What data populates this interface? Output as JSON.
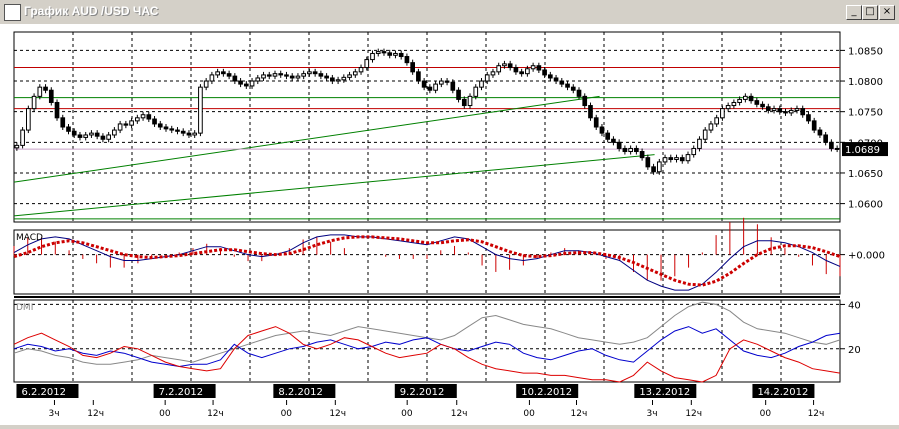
{
  "window": {
    "title": "График AUD /USD  ЧАС",
    "minimize": "_",
    "maximize": "□",
    "close": "×"
  },
  "colors": {
    "background": "#ffffff",
    "grid": "#000000",
    "resistance": "#c00000",
    "support": "#008000",
    "macd_signal": "#cc0000",
    "macd_line": "#000080",
    "dmi_adx": "#888888",
    "dmi_plus": "#0000cc",
    "dmi_minus": "#dd0000",
    "date_label_bg": "#000000",
    "price_label_bg": "#000000"
  },
  "chart_data": [
    {
      "type": "candlestick",
      "panel": "price",
      "title": "",
      "yticks": [
        "1.0850",
        "1.0800",
        "1.0750",
        "1.0700",
        "1.0650",
        "1.0600"
      ],
      "ylim": [
        1.057,
        1.088
      ],
      "current_price": "1.0689",
      "horizontal_lines": [
        {
          "kind": "resistance",
          "value": 1.0822
        },
        {
          "kind": "resistance",
          "value": 1.0755
        },
        {
          "kind": "support",
          "value": 1.0773
        },
        {
          "kind": "support",
          "value": 1.0575
        }
      ],
      "trend_lines": [
        {
          "kind": "support",
          "from": [
            0,
            1.0635
          ],
          "to": [
            200,
            1.0775
          ]
        },
        {
          "kind": "support",
          "from": [
            0,
            1.058
          ],
          "to": [
            200,
            1.068
          ]
        }
      ],
      "close": [
        1.0695,
        1.072,
        1.0755,
        1.0775,
        1.079,
        1.0785,
        1.0765,
        1.074,
        1.0725,
        1.0718,
        1.0712,
        1.0708,
        1.0712,
        1.0715,
        1.071,
        1.0705,
        1.0712,
        1.072,
        1.073,
        1.0728,
        1.0735,
        1.074,
        1.0745,
        1.0738,
        1.073,
        1.0725,
        1.0722,
        1.072,
        1.0718,
        1.0715,
        1.0712,
        1.0715,
        1.079,
        1.08,
        1.081,
        1.0815,
        1.0812,
        1.0808,
        1.08,
        1.0795,
        1.0792,
        1.08,
        1.0805,
        1.081,
        1.0808,
        1.0812,
        1.081,
        1.0808,
        1.0805,
        1.0808,
        1.0812,
        1.0815,
        1.0812,
        1.0808,
        1.0805,
        1.08,
        1.0802,
        1.0806,
        1.081,
        1.0815,
        1.0822,
        1.0835,
        1.0845,
        1.0848,
        1.0846,
        1.0842,
        1.0845,
        1.084,
        1.083,
        1.0815,
        1.08,
        1.079,
        1.0785,
        1.0795,
        1.08,
        1.0798,
        1.0785,
        1.077,
        1.076,
        1.0775,
        1.079,
        1.08,
        1.081,
        1.0815,
        1.0825,
        1.0828,
        1.0822,
        1.0815,
        1.0812,
        1.082,
        1.0825,
        1.0818,
        1.081,
        1.0805,
        1.08,
        1.0795,
        1.079,
        1.0785,
        1.0775,
        1.076,
        1.074,
        1.0725,
        1.0715,
        1.0705,
        1.07,
        1.069,
        1.0685,
        1.069,
        1.0685,
        1.0675,
        1.066,
        1.0652,
        1.0668,
        1.0675,
        1.0672,
        1.0675,
        1.067,
        1.068,
        1.069,
        1.0705,
        1.072,
        1.073,
        1.074,
        1.0755,
        1.076,
        1.0765,
        1.077,
        1.0775,
        1.0768,
        1.0762,
        1.0758,
        1.0752,
        1.0755,
        1.075,
        1.0748,
        1.0752,
        1.0755,
        1.0745,
        1.0735,
        1.072,
        1.0712,
        1.07,
        1.069,
        1.0689
      ],
      "candle_range": 0.0014
    },
    {
      "type": "line",
      "panel": "macd",
      "title": "MACD",
      "yticks": [
        "+0.000"
      ],
      "ylim": [
        -0.004,
        0.0025
      ],
      "series": [
        {
          "role": "macd_line",
          "values": [
            0.0002,
            0.001,
            0.0016,
            0.0018,
            0.0016,
            0.001,
            0.0004,
            -0.0002,
            -0.0006,
            -0.0006,
            -0.0004,
            -0.0002,
            0.0,
            0.0004,
            0.0008,
            0.0008,
            0.0004,
            0.0,
            -0.0002,
            0.0,
            0.0004,
            0.0012,
            0.0018,
            0.002,
            0.002,
            0.0018,
            0.0018,
            0.0016,
            0.0014,
            0.0012,
            0.001,
            0.0014,
            0.0018,
            0.0016,
            0.0008,
            0.0,
            -0.0004,
            -0.0006,
            -0.0004,
            0.0,
            0.0004,
            0.0004,
            0.0002,
            -0.0002,
            -0.0006,
            -0.0016,
            -0.0026,
            -0.0032,
            -0.0036,
            -0.0036,
            -0.003,
            -0.0018,
            -0.0004,
            0.0008,
            0.0014,
            0.0014,
            0.0012,
            0.0008,
            0.0002,
            -0.0006,
            -0.0012
          ]
        },
        {
          "role": "signal_line",
          "values": [
            -0.0002,
            0.0002,
            0.0008,
            0.0012,
            0.0014,
            0.0012,
            0.0008,
            0.0004,
            0.0,
            -0.0002,
            -0.0003,
            -0.0002,
            -0.0001,
            0.0001,
            0.0003,
            0.0005,
            0.0005,
            0.0003,
            0.0001,
            0.0,
            0.0001,
            0.0005,
            0.001,
            0.0014,
            0.0017,
            0.0018,
            0.0018,
            0.0017,
            0.0016,
            0.0014,
            0.0012,
            0.0012,
            0.0014,
            0.0015,
            0.0013,
            0.0008,
            0.0003,
            -0.0001,
            -0.0002,
            -0.0001,
            0.0001,
            0.0002,
            0.0002,
            0.0,
            -0.0003,
            -0.0008,
            -0.0014,
            -0.002,
            -0.0026,
            -0.003,
            -0.0031,
            -0.0027,
            -0.0019,
            -0.0009,
            0.0,
            0.0006,
            0.0009,
            0.0009,
            0.0007,
            0.0003,
            -0.0002
          ]
        }
      ]
    },
    {
      "type": "line",
      "panel": "dmi",
      "title": "DMI",
      "yticks": [
        "40",
        "20"
      ],
      "ylim": [
        5,
        42
      ],
      "series": [
        {
          "role": "adx",
          "values": [
            18,
            20,
            19,
            17,
            16,
            14,
            13,
            13,
            14,
            15,
            17,
            16,
            15,
            14,
            16,
            18,
            20,
            22,
            24,
            26,
            27,
            28,
            27,
            26,
            28,
            30,
            29,
            28,
            27,
            26,
            25,
            24,
            26,
            30,
            34,
            35,
            33,
            31,
            30,
            29,
            27,
            25,
            24,
            23,
            22,
            23,
            25,
            30,
            35,
            39,
            41,
            40,
            37,
            32,
            29,
            28,
            27,
            25,
            23,
            22,
            24
          ]
        },
        {
          "role": "plus_di",
          "values": [
            20,
            22,
            21,
            19,
            20,
            18,
            17,
            19,
            18,
            16,
            14,
            13,
            12,
            13,
            13,
            15,
            22,
            18,
            16,
            18,
            20,
            21,
            23,
            24,
            22,
            20,
            21,
            23,
            22,
            24,
            25,
            22,
            20,
            19,
            21,
            23,
            22,
            18,
            16,
            15,
            17,
            19,
            20,
            17,
            15,
            14,
            19,
            24,
            28,
            30,
            27,
            29,
            24,
            19,
            17,
            16,
            18,
            21,
            23,
            26,
            27
          ]
        },
        {
          "role": "minus_di",
          "values": [
            22,
            25,
            27,
            24,
            21,
            17,
            16,
            18,
            21,
            20,
            17,
            14,
            12,
            11,
            10,
            11,
            20,
            26,
            28,
            30,
            27,
            22,
            20,
            22,
            25,
            24,
            21,
            18,
            16,
            17,
            18,
            22,
            20,
            16,
            13,
            11,
            10,
            9,
            9,
            8,
            8,
            7,
            6,
            6,
            5,
            8,
            14,
            10,
            7,
            6,
            5,
            8,
            20,
            24,
            22,
            19,
            16,
            14,
            11,
            10,
            9
          ]
        }
      ]
    }
  ],
  "time_axis": {
    "dates": [
      "6.2.2012",
      "7.2.2012",
      "8.2.2012",
      "9.2.2012",
      "10.2.2012",
      "13.2.2012",
      "14.2.2012"
    ],
    "ticks": [
      {
        "label": "3ч",
        "frac": 0.049
      },
      {
        "label": "12ч",
        "frac": 0.096
      },
      {
        "label": "00",
        "frac": 0.183
      },
      {
        "label": "12ч",
        "frac": 0.241
      },
      {
        "label": "00",
        "frac": 0.33
      },
      {
        "label": "12ч",
        "frac": 0.389
      },
      {
        "label": "00",
        "frac": 0.476
      },
      {
        "label": "12ч",
        "frac": 0.536
      },
      {
        "label": "00",
        "frac": 0.624
      },
      {
        "label": "12ч",
        "frac": 0.681
      },
      {
        "label": "3ч",
        "frac": 0.773
      },
      {
        "label": "12ч",
        "frac": 0.82
      },
      {
        "label": "00",
        "frac": 0.91
      },
      {
        "label": "12ч",
        "frac": 0.968
      }
    ]
  }
}
